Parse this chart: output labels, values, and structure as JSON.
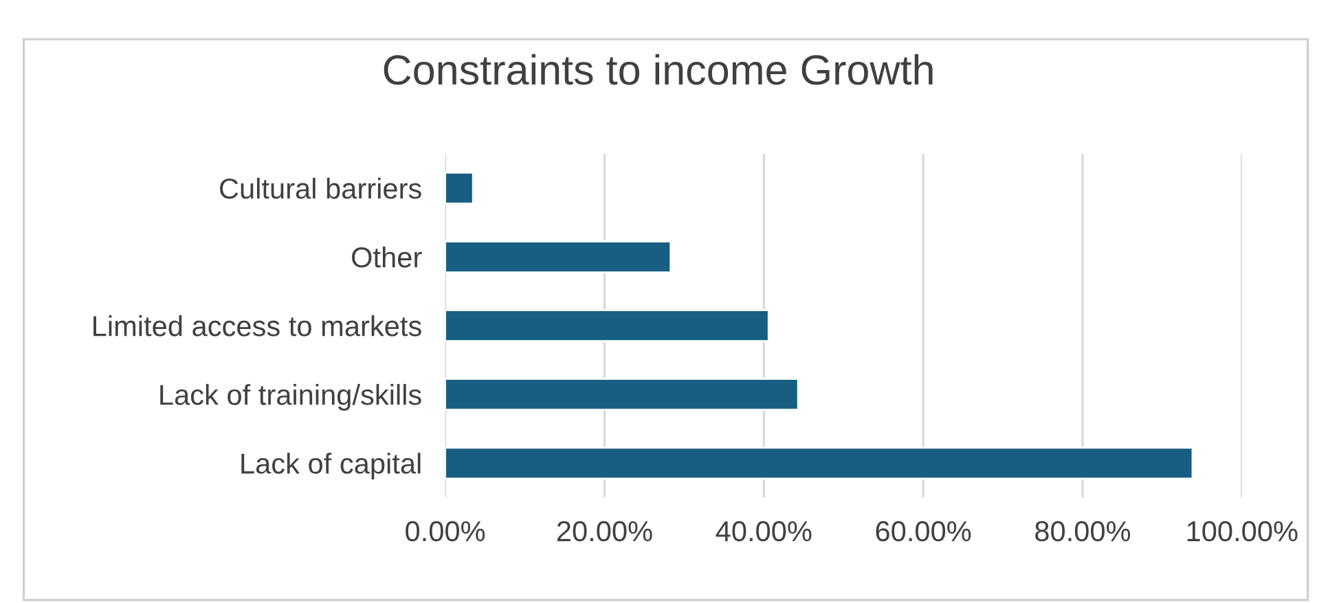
{
  "chart_data": {
    "type": "bar",
    "orientation": "horizontal",
    "title": "Constraints to income Growth",
    "categories": [
      "Cultural barriers",
      "Other",
      "Limited access to markets",
      "Lack of training/skills",
      "Lack of capital"
    ],
    "values": [
      3.5,
      28.3,
      40.6,
      44.3,
      93.8
    ],
    "color": "#175e82",
    "xlim": [
      0,
      100
    ],
    "xticks": [
      {
        "value": 0,
        "label": "0.00%"
      },
      {
        "value": 20,
        "label": "20.00%"
      },
      {
        "value": 40,
        "label": "40.00%"
      },
      {
        "value": 60,
        "label": "60.00%"
      },
      {
        "value": 80,
        "label": "80.00%"
      },
      {
        "value": 100,
        "label": "100.00%"
      }
    ],
    "grid": "x",
    "legend": false
  }
}
